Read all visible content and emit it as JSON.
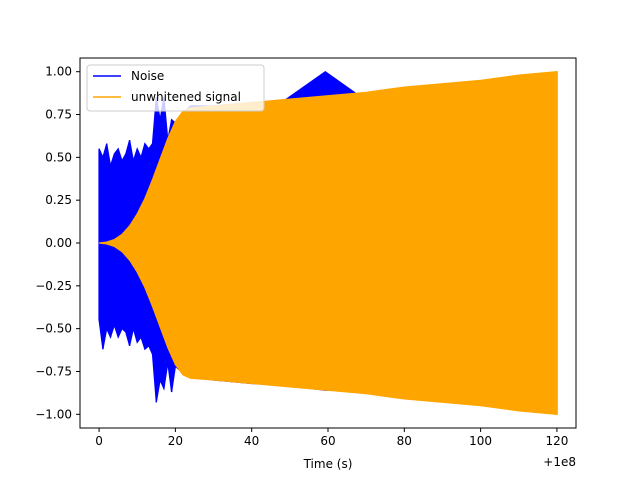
{
  "chart_data": {
    "type": "line",
    "title": "",
    "xlabel": "Time (s)",
    "ylabel": "",
    "x_offset_label": "+1e8",
    "xlim": [
      -5,
      125
    ],
    "ylim": [
      -1.08,
      1.08
    ],
    "x_ticks": [
      0,
      20,
      40,
      60,
      80,
      100,
      120
    ],
    "x_tick_labels": [
      "0",
      "20",
      "40",
      "60",
      "80",
      "100",
      "120"
    ],
    "y_ticks": [
      -1.0,
      -0.75,
      -0.5,
      -0.25,
      0.0,
      0.25,
      0.5,
      0.75,
      1.0
    ],
    "y_tick_labels": [
      "−1.00",
      "−0.75",
      "−0.50",
      "−0.25",
      "0.00",
      "0.25",
      "0.50",
      "0.75",
      "1.00"
    ],
    "grid": false,
    "legend_position": "top-left",
    "series": [
      {
        "name": "Noise",
        "color": "#0000ff",
        "x": [
          0,
          1,
          2,
          3,
          4,
          5,
          6,
          7,
          8,
          9,
          10,
          11,
          12,
          13,
          14,
          15,
          16,
          17,
          18,
          19,
          20,
          21,
          22,
          23,
          24,
          30,
          40,
          48.5,
          59.3,
          70,
          71.4,
          80,
          90,
          100,
          110,
          120
        ],
        "upper": [
          0.55,
          0.5,
          0.58,
          0.45,
          0.52,
          0.55,
          0.48,
          0.52,
          0.6,
          0.48,
          0.55,
          0.5,
          0.58,
          0.55,
          0.58,
          0.85,
          0.72,
          0.85,
          0.6,
          0.72,
          0.7,
          0.72,
          0.75,
          0.78,
          0.8,
          0.8,
          0.82,
          0.83,
          1.0,
          0.83,
          0.83,
          0.85,
          0.88,
          0.9,
          0.95,
          1.0
        ],
        "lower": [
          -0.45,
          -0.62,
          -0.5,
          -0.55,
          -0.48,
          -0.55,
          -0.5,
          -0.52,
          -0.6,
          -0.5,
          -0.58,
          -0.55,
          -0.62,
          -0.6,
          -0.65,
          -0.93,
          -0.8,
          -0.85,
          -0.7,
          -0.87,
          -0.72,
          -0.74,
          -0.76,
          -0.77,
          -0.78,
          -0.8,
          -0.82,
          -0.83,
          -0.86,
          -0.84,
          -0.88,
          -0.86,
          -0.88,
          -0.9,
          -0.95,
          -1.0
        ]
      },
      {
        "name": "unwhitened signal",
        "color": "#ffa500",
        "x": [
          0,
          2,
          4,
          6,
          8,
          10,
          12,
          14,
          16,
          18,
          20,
          22,
          24,
          30,
          40,
          50,
          60,
          70,
          80,
          90,
          100,
          110,
          120
        ],
        "upper": [
          0.0,
          0.005,
          0.02,
          0.05,
          0.1,
          0.17,
          0.26,
          0.37,
          0.49,
          0.61,
          0.71,
          0.77,
          0.79,
          0.8,
          0.82,
          0.84,
          0.86,
          0.88,
          0.91,
          0.93,
          0.95,
          0.98,
          1.0
        ],
        "lower": [
          0.0,
          -0.005,
          -0.02,
          -0.05,
          -0.1,
          -0.17,
          -0.26,
          -0.37,
          -0.49,
          -0.61,
          -0.71,
          -0.77,
          -0.79,
          -0.8,
          -0.82,
          -0.84,
          -0.86,
          -0.88,
          -0.91,
          -0.93,
          -0.95,
          -0.98,
          -1.0
        ]
      }
    ]
  }
}
